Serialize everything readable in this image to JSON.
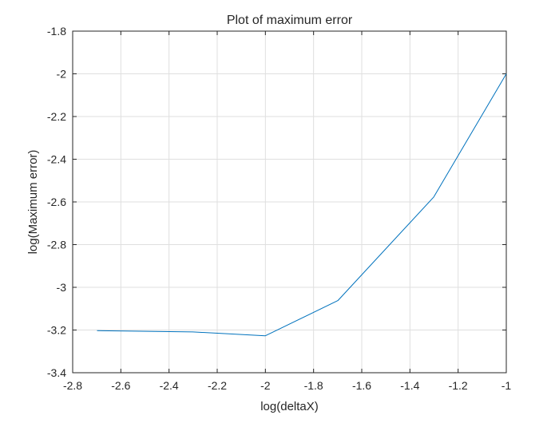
{
  "chart_data": {
    "type": "line",
    "title": "Plot of maximum error",
    "xlabel": "log(deltaX)",
    "ylabel": "log(Maximum error)",
    "xlim": [
      -2.8,
      -1.0
    ],
    "ylim": [
      -3.4,
      -1.8
    ],
    "xticks": [
      -2.8,
      -2.6,
      -2.4,
      -2.2,
      -2.0,
      -1.8,
      -1.6,
      -1.4,
      -1.2,
      -1.0
    ],
    "xtick_labels": [
      "-2.8",
      "-2.6",
      "-2.4",
      "-2.2",
      "-2",
      "-1.8",
      "-1.6",
      "-1.4",
      "-1.2",
      "-1"
    ],
    "yticks": [
      -3.4,
      -3.2,
      -3.0,
      -2.8,
      -2.6,
      -2.4,
      -2.2,
      -2.0,
      -1.8
    ],
    "ytick_labels": [
      "-3.4",
      "-3.2",
      "-3",
      "-2.8",
      "-2.6",
      "-2.4",
      "-2.2",
      "-2",
      "-1.8"
    ],
    "grid": true,
    "series": [
      {
        "color": "#0072bd",
        "x": [
          -2.699,
          -2.301,
          -2.0,
          -1.699,
          -1.301,
          -1.0
        ],
        "y": [
          -3.203,
          -3.209,
          -3.227,
          -3.062,
          -2.577,
          -2.0
        ]
      }
    ]
  }
}
